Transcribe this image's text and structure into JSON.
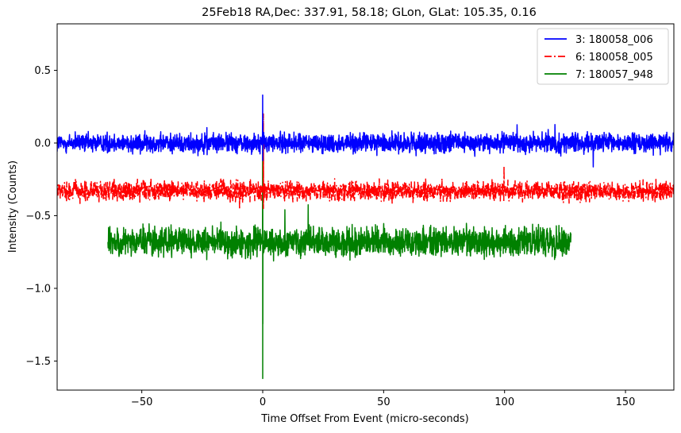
{
  "chart_data": {
    "type": "line",
    "title": "25Feb18 RA,Dec:  337.91,  58.18; GLon, GLat:  105.35,   0.16",
    "xlabel": "Time Offset From Event (micro-seconds)",
    "ylabel": "Intensity (Counts)",
    "xlim": [
      -85,
      170
    ],
    "ylim": [
      -1.7,
      0.82
    ],
    "xticks": [
      -50,
      0,
      50,
      100,
      150
    ],
    "xtick_labels": [
      "−50",
      "0",
      "50",
      "100",
      "150"
    ],
    "yticks": [
      0.5,
      0.0,
      -0.5,
      -1.0,
      -1.5
    ],
    "ytick_labels": [
      "0.5",
      "0.0",
      "−0.5",
      "−1.0",
      "−1.5"
    ],
    "legend_position": "top-right",
    "series": [
      {
        "name": "3: 180058_006",
        "color": "#0000ff",
        "style": "solid",
        "x_start": -85,
        "x_end": 170,
        "baseline": 0.0,
        "noise_amplitude": 0.04,
        "spike": {
          "x": 0.0,
          "min": -0.12,
          "max": 0.33
        }
      },
      {
        "name": "6: 180058_005",
        "color": "#ff0000",
        "style": "dashdot",
        "x_start": -85,
        "x_end": 170,
        "baseline": -0.33,
        "noise_amplitude": 0.04,
        "spike": {
          "x": 0.3,
          "min": -0.45,
          "max": 0.2
        }
      },
      {
        "name": "7: 180057_948",
        "color": "#008000",
        "style": "solid",
        "x_start": -64,
        "x_end": 127.5,
        "baseline": -0.68,
        "noise_amplitude": 0.06,
        "spike": {
          "x": 0.0,
          "min": -1.62,
          "max": 0.05
        }
      }
    ]
  }
}
